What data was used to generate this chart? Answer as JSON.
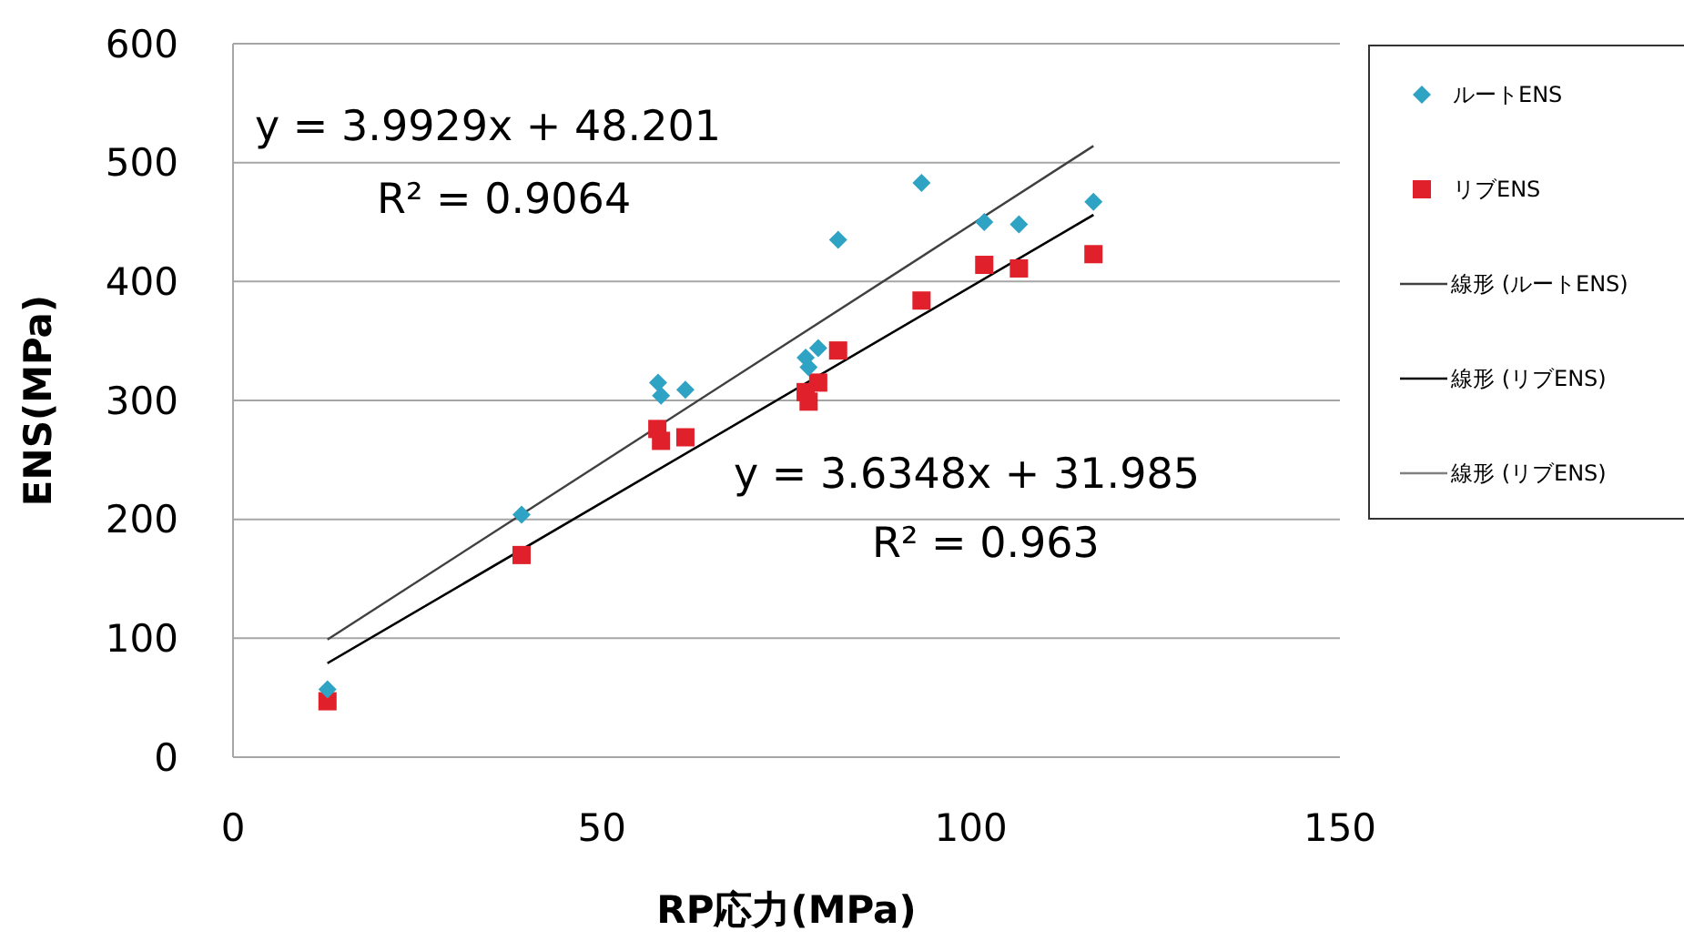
{
  "chart_data": {
    "type": "scatter",
    "xlabel": "RP応力(MPa)",
    "ylabel": "ENS(MPa)",
    "xlim": [
      0,
      150
    ],
    "xticks": [
      0,
      50,
      100,
      150
    ],
    "ylim": [
      0,
      600
    ],
    "yticks": [
      0,
      100,
      200,
      300,
      400,
      500,
      600
    ],
    "grid": "y",
    "legend": "right",
    "series": [
      {
        "name": "ルートENS",
        "color": "#2fa3c4",
        "marker": "diamond",
        "x": [
          12.8,
          39.1,
          57.6,
          58.0,
          61.3,
          77.6,
          78.0,
          79.3,
          82.0,
          93.3,
          101.8,
          106.5,
          116.6
        ],
        "values": [
          57,
          204,
          315,
          304,
          309,
          336,
          328,
          344,
          435,
          483,
          450,
          448,
          467
        ]
      },
      {
        "name": "リブENS",
        "color": "#e0202a",
        "marker": "square",
        "x": [
          12.8,
          39.1,
          57.5,
          58.0,
          61.3,
          77.6,
          78.0,
          79.3,
          82.0,
          93.3,
          101.8,
          106.5,
          116.6
        ],
        "values": [
          47,
          170,
          276,
          266,
          269,
          307,
          299,
          315,
          342,
          384,
          414,
          411,
          423
        ]
      },
      {
        "name": "線形 (ルートENS)",
        "type": "line",
        "color": "#404040",
        "x": [
          12.8,
          116.6
        ],
        "values": [
          99,
          514
        ]
      },
      {
        "name": "線形 (リブENS)",
        "type": "line",
        "color": "#000000",
        "x": [
          12.8,
          116.6
        ],
        "values": [
          79,
          456
        ]
      },
      {
        "name": "線形 (リブENS)",
        "type": "line",
        "color": "#808080",
        "x": [
          12.8,
          116.6
        ],
        "values": [
          79,
          456
        ]
      }
    ],
    "annotations": [
      "y = 3.9929x + 48.201",
      "R² = 0.9064",
      "y = 3.6348x + 31.985",
      "R² = 0.963"
    ]
  }
}
